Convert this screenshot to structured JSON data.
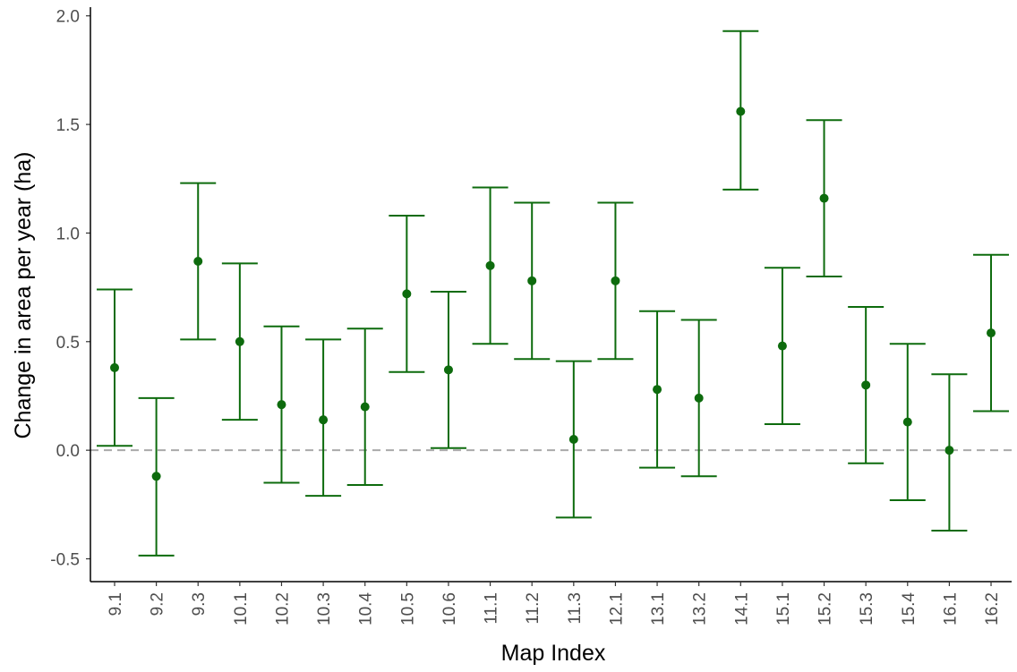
{
  "chart_data": {
    "type": "errorbar",
    "x_label": "Map Index",
    "y_label": "Change in area per year (ha)",
    "categories": [
      "9.1",
      "9.2",
      "9.3",
      "10.1",
      "10.2",
      "10.3",
      "10.4",
      "10.5",
      "10.6",
      "11.1",
      "11.2",
      "11.3",
      "12.1",
      "13.1",
      "13.2",
      "14.1",
      "15.1",
      "15.2",
      "15.3",
      "15.4",
      "16.1",
      "16.2"
    ],
    "values": [
      0.38,
      -0.12,
      0.87,
      0.5,
      0.21,
      0.14,
      0.2,
      0.72,
      0.37,
      0.85,
      0.78,
      0.05,
      0.78,
      0.28,
      0.24,
      1.56,
      0.48,
      1.16,
      0.3,
      0.13,
      0.0,
      0.54
    ],
    "lower": [
      0.02,
      -0.485,
      0.51,
      0.14,
      -0.15,
      -0.21,
      -0.16,
      0.36,
      0.01,
      0.49,
      0.42,
      -0.31,
      0.42,
      -0.08,
      -0.12,
      1.2,
      0.12,
      0.8,
      -0.06,
      -0.23,
      -0.37,
      0.18
    ],
    "upper": [
      0.74,
      0.24,
      1.23,
      0.86,
      0.57,
      0.51,
      0.56,
      1.08,
      0.73,
      1.21,
      1.14,
      0.41,
      1.14,
      0.64,
      0.6,
      1.93,
      0.84,
      1.52,
      0.66,
      0.49,
      0.35,
      0.9
    ],
    "color": "#0d6b0d",
    "ylim": [
      -0.605,
      2.04
    ],
    "yticks": [
      -0.5,
      {
        "value": 0,
        "label": "0.0"
      },
      0.5,
      {
        "value": 1,
        "label": "1.0"
      },
      1.5,
      {
        "value": 2,
        "label": "2.0"
      }
    ],
    "reference_line": 0,
    "grid": false
  }
}
